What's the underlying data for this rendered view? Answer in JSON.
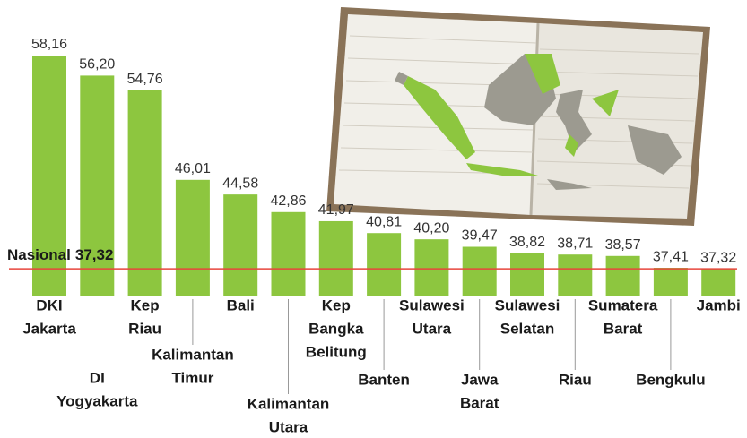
{
  "chart_data": {
    "type": "bar",
    "categories": [
      [
        "DKI",
        "Jakarta"
      ],
      [
        "DI",
        "Yogyakarta"
      ],
      [
        "Kep",
        "Riau"
      ],
      [
        "Kalimantan",
        "Timur"
      ],
      [
        "Bali"
      ],
      [
        "Kalimantan",
        "Utara"
      ],
      [
        "Kep",
        "Bangka",
        "Belitung"
      ],
      [
        "Banten"
      ],
      [
        "Sulawesi",
        "Utara"
      ],
      [
        "Jawa",
        "Barat"
      ],
      [
        "Sulawesi",
        "Selatan"
      ],
      [
        "Riau"
      ],
      [
        "Sumatera",
        "Barat"
      ],
      [
        "Bengkulu"
      ],
      [
        "Jambi"
      ]
    ],
    "values": [
      58.16,
      56.2,
      54.76,
      46.01,
      44.58,
      42.86,
      41.97,
      40.81,
      40.2,
      39.47,
      38.82,
      38.71,
      38.57,
      37.41,
      37.32
    ],
    "value_labels": [
      "58,16",
      "56,20",
      "54,76",
      "46,01",
      "44,58",
      "42,86",
      "41,97",
      "40,81",
      "40,20",
      "39,47",
      "38,82",
      "38,71",
      "38,57",
      "37,41",
      "37,32"
    ],
    "color": "#8dc63f",
    "ylim": [
      34.7,
      60
    ],
    "reference_line": {
      "label": "Nasional",
      "value": 37.32,
      "value_label": "37,32",
      "color": "#e8453c"
    }
  }
}
